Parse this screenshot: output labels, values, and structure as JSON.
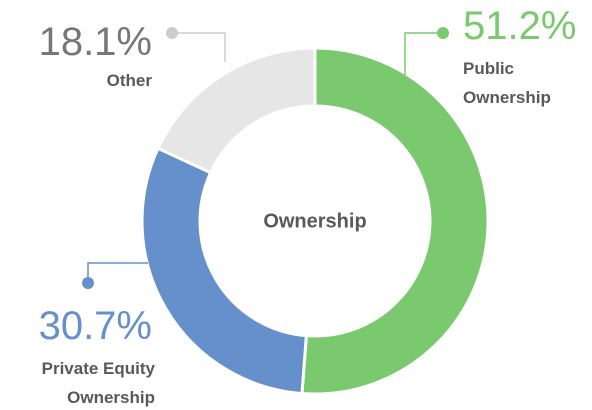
{
  "chart_data": {
    "type": "donut",
    "center_label": "Ownership",
    "categories": [
      "Public Ownership",
      "Private Equity Ownership",
      "Other"
    ],
    "values": [
      51.2,
      30.7,
      18.1
    ],
    "value_labels": [
      "51.2%",
      "30.7%",
      "18.1%"
    ],
    "colors": [
      "#7ac96f",
      "#6690cc",
      "#e6e6e6"
    ]
  }
}
